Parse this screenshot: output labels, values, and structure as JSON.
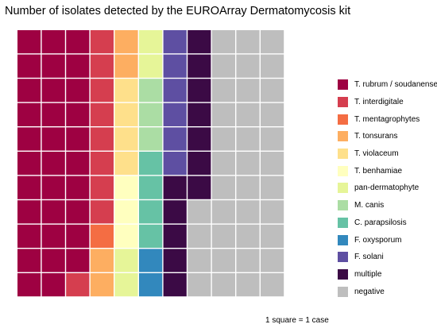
{
  "chart_data": {
    "type": "waffle",
    "title": "Number of isolates detected by the EUROArray Dermatomycosis kit",
    "caption": "1 square = 1 case",
    "legend_position": "right",
    "rows": 11,
    "categories": [
      {
        "name": "T. rubrum / soudanense",
        "color": "#9E0142",
        "count": 32
      },
      {
        "name": "T. interdigitale",
        "color": "#D53E4F",
        "count": 9
      },
      {
        "name": "T. mentagrophytes",
        "color": "#F46D43",
        "count": 1
      },
      {
        "name": "T. tonsurans",
        "color": "#FDAE61",
        "count": 4
      },
      {
        "name": "T. violaceum",
        "color": "#FEE08B",
        "count": 4
      },
      {
        "name": "T. benhamiae",
        "color": "#FFFFBF",
        "count": 3
      },
      {
        "name": "pan-dermatophyte",
        "color": "#E6F598",
        "count": 4
      },
      {
        "name": "M. canis",
        "color": "#ABDDA4",
        "count": 3
      },
      {
        "name": "C. parapsilosis",
        "color": "#66C2A5",
        "count": 4
      },
      {
        "name": "F. oxysporum",
        "color": "#3288BD",
        "count": 2
      },
      {
        "name": "F. solani",
        "color": "#5E4FA2",
        "count": 6
      },
      {
        "name": "multiple",
        "color": "#3B0A45",
        "count": 12
      },
      {
        "name": "negative",
        "color": "#BEBEBE",
        "count": 37
      }
    ]
  }
}
